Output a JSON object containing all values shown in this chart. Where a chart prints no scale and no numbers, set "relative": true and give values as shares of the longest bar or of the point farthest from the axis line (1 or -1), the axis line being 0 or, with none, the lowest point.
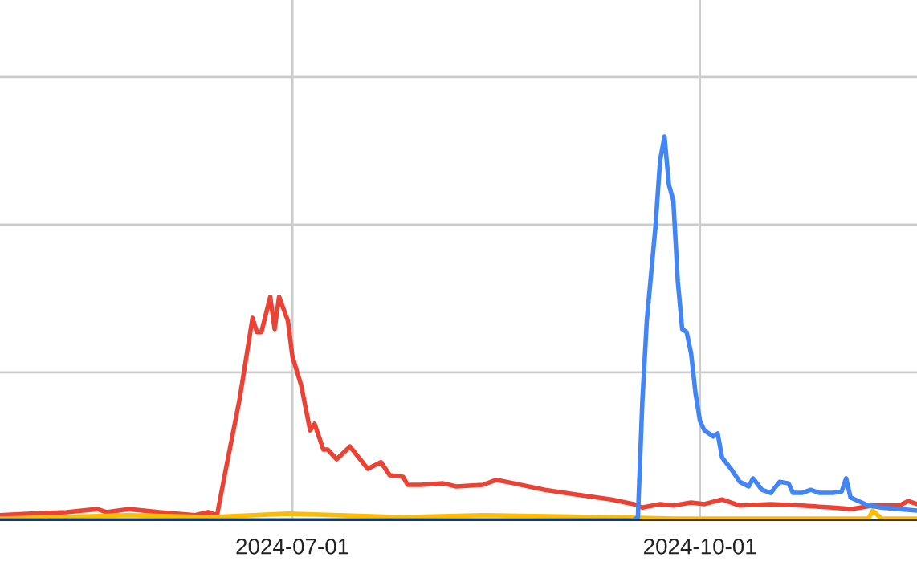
{
  "chart_data": {
    "type": "line",
    "relative": true,
    "grid": true,
    "tick_labels": "x",
    "marker": "none",
    "line_style": "solid",
    "xlim": [
      "2024-04-26",
      "2024-11-19"
    ],
    "xticks": [
      {
        "value": "2024-07-01",
        "label": "2024-07-01"
      },
      {
        "value": "2024-10-01",
        "label": "2024-10-01"
      }
    ],
    "series": [
      {
        "color": "#ea4335",
        "x": [
          "2024-04-26",
          "2024-05-03",
          "2024-05-11",
          "2024-05-18",
          "2024-05-20",
          "2024-05-25",
          "2024-06-01",
          "2024-06-09",
          "2024-06-12",
          "2024-06-14",
          "2024-06-16",
          "2024-06-19",
          "2024-06-20",
          "2024-06-22",
          "2024-06-23",
          "2024-06-24",
          "2024-06-26",
          "2024-06-27",
          "2024-06-28",
          "2024-06-30",
          "2024-07-01",
          "2024-07-03",
          "2024-07-05",
          "2024-07-06",
          "2024-07-08",
          "2024-07-09",
          "2024-07-11",
          "2024-07-14",
          "2024-07-16",
          "2024-07-18",
          "2024-07-21",
          "2024-07-23",
          "2024-07-26",
          "2024-07-27",
          "2024-07-30",
          "2024-08-04",
          "2024-08-07",
          "2024-08-13",
          "2024-08-16",
          "2024-08-20",
          "2024-08-27",
          "2024-09-03",
          "2024-09-11",
          "2024-09-16",
          "2024-09-18",
          "2024-09-22",
          "2024-09-25",
          "2024-09-29",
          "2024-10-02",
          "2024-10-06",
          "2024-10-10",
          "2024-10-17",
          "2024-10-24",
          "2024-10-31",
          "2024-11-04",
          "2024-11-09",
          "2024-11-15",
          "2024-11-17",
          "2024-11-19"
        ],
        "values": [
          0.013,
          0.017,
          0.021,
          0.029,
          0.021,
          0.029,
          0.021,
          0.013,
          0.021,
          0.013,
          0.134,
          0.31,
          0.381,
          0.527,
          0.49,
          0.49,
          0.582,
          0.498,
          0.582,
          0.519,
          0.427,
          0.351,
          0.234,
          0.251,
          0.184,
          0.184,
          0.159,
          0.192,
          0.163,
          0.134,
          0.151,
          0.117,
          0.113,
          0.092,
          0.092,
          0.096,
          0.088,
          0.092,
          0.105,
          0.096,
          0.079,
          0.067,
          0.054,
          0.042,
          0.033,
          0.042,
          0.038,
          0.046,
          0.042,
          0.054,
          0.038,
          0.042,
          0.038,
          0.033,
          0.029,
          0.038,
          0.038,
          0.05,
          0.042
        ]
      },
      {
        "color": "#fbbc04",
        "x": [
          "2024-04-26",
          "2024-05-25",
          "2024-06-12",
          "2024-06-30",
          "2024-07-26",
          "2024-08-13",
          "2024-09-11",
          "2024-09-25",
          "2024-10-17",
          "2024-10-31",
          "2024-11-08",
          "2024-11-09",
          "2024-11-11",
          "2024-11-19"
        ],
        "values": [
          0.004,
          0.013,
          0.008,
          0.017,
          0.008,
          0.013,
          0.008,
          0.004,
          0.004,
          0.004,
          0.004,
          0.025,
          0.004,
          0.004
        ]
      },
      {
        "color": "#4285f4",
        "x": [
          "2024-04-26",
          "2024-09-16",
          "2024-09-17",
          "2024-09-18",
          "2024-09-19",
          "2024-09-21",
          "2024-09-22",
          "2024-09-23",
          "2024-09-24",
          "2024-09-25",
          "2024-09-26",
          "2024-09-27",
          "2024-09-28",
          "2024-09-29",
          "2024-09-30",
          "2024-10-01",
          "2024-10-02",
          "2024-10-04",
          "2024-10-05",
          "2024-10-06",
          "2024-10-08",
          "2024-10-10",
          "2024-10-12",
          "2024-10-13",
          "2024-10-15",
          "2024-10-17",
          "2024-10-19",
          "2024-10-21",
          "2024-10-22",
          "2024-10-24",
          "2024-10-26",
          "2024-10-28",
          "2024-10-31",
          "2024-11-02",
          "2024-11-03",
          "2024-11-04",
          "2024-11-08",
          "2024-11-11",
          "2024-11-15",
          "2024-11-19"
        ],
        "values": [
          0,
          0,
          0.008,
          0.31,
          0.519,
          0.77,
          0.937,
          1,
          0.874,
          0.833,
          0.623,
          0.498,
          0.49,
          0.435,
          0.331,
          0.259,
          0.234,
          0.218,
          0.226,
          0.163,
          0.134,
          0.1,
          0.088,
          0.109,
          0.079,
          0.071,
          0.1,
          0.096,
          0.071,
          0.071,
          0.079,
          0.071,
          0.071,
          0.075,
          0.109,
          0.059,
          0.038,
          0.033,
          0.029,
          0.025
        ]
      }
    ]
  }
}
